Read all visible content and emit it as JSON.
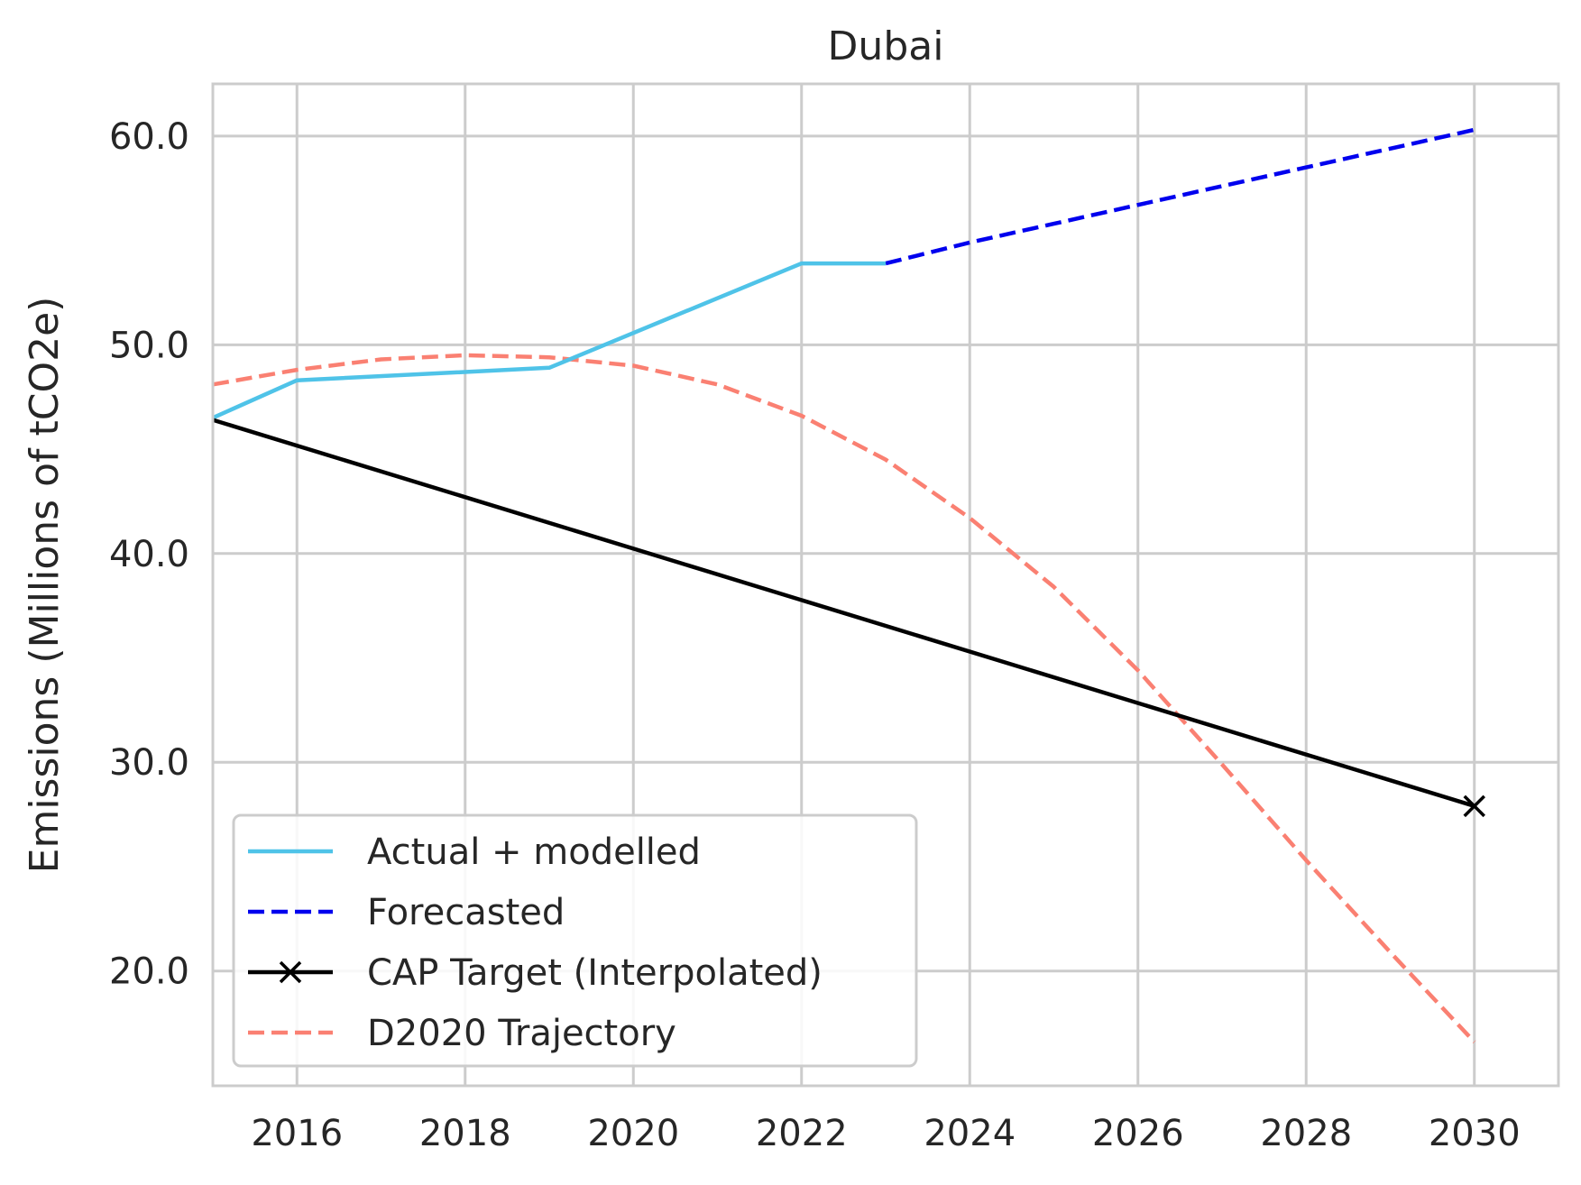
{
  "chart_data": {
    "type": "line",
    "title": "Dubai",
    "xlabel": "",
    "ylabel": "Emissions (Millions of tCO2e)",
    "xlim": [
      2015,
      2031
    ],
    "ylim": [
      14.5,
      62.5
    ],
    "xticks": [
      2016,
      2018,
      2020,
      2022,
      2024,
      2026,
      2028,
      2030
    ],
    "yticks": [
      20.0,
      30.0,
      40.0,
      50.0,
      60.0
    ],
    "xtick_labels": [
      "2016",
      "2018",
      "2020",
      "2022",
      "2024",
      "2026",
      "2028",
      "2030"
    ],
    "ytick_labels": [
      "20.0",
      "30.0",
      "40.0",
      "50.0",
      "60.0"
    ],
    "grid": true,
    "legend_position": "lower-left",
    "series": [
      {
        "name": "Actual + modelled",
        "color": "#4fc3e8",
        "style": "solid",
        "marker": "none",
        "x": [
          2015,
          2016,
          2019,
          2022,
          2023
        ],
        "y": [
          46.5,
          48.3,
          48.9,
          53.9,
          53.9
        ]
      },
      {
        "name": "Forecasted",
        "color": "#0000ee",
        "style": "dashed",
        "marker": "none",
        "x": [
          2023,
          2024,
          2025,
          2026,
          2027,
          2028,
          2029,
          2030
        ],
        "y": [
          53.9,
          54.9,
          55.8,
          56.7,
          57.6,
          58.5,
          59.4,
          60.3
        ]
      },
      {
        "name": "CAP Target (Interpolated)",
        "color": "#000000",
        "style": "solid",
        "marker": "x-at-end",
        "x": [
          2015,
          2030
        ],
        "y": [
          46.4,
          27.9
        ]
      },
      {
        "name": "D2020 Trajectory",
        "color": "#fa8072",
        "style": "dashed",
        "marker": "none",
        "x": [
          2015,
          2016,
          2017,
          2018,
          2019,
          2020,
          2021,
          2022,
          2023,
          2024,
          2025,
          2026,
          2027,
          2028,
          2029,
          2030
        ],
        "y": [
          48.1,
          48.8,
          49.3,
          49.5,
          49.4,
          49.0,
          48.1,
          46.6,
          44.5,
          41.7,
          38.4,
          34.4,
          29.9,
          25.3,
          20.9,
          16.6
        ]
      }
    ]
  }
}
